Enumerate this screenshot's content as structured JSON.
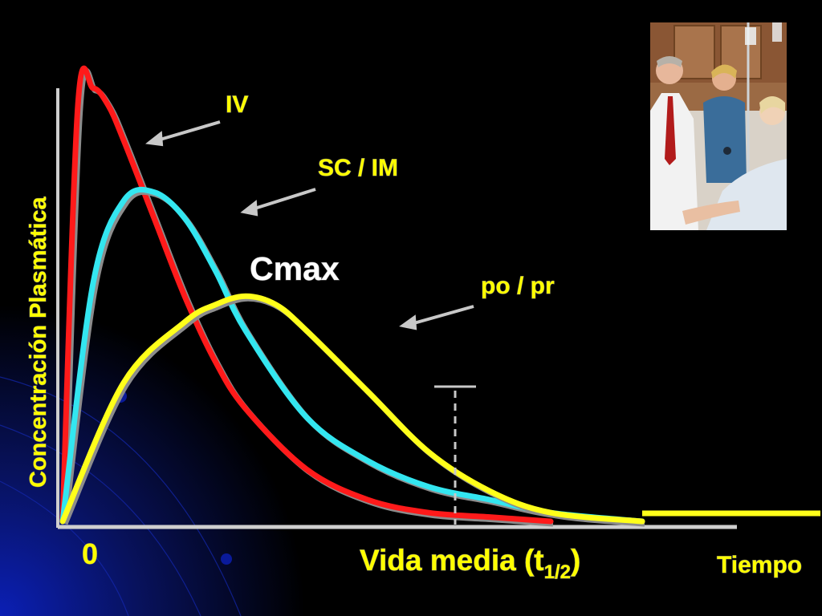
{
  "slide": {
    "background_color": "#000000",
    "decoration_color": "#0a1ea8",
    "photo": {
      "description_icon": "photo-medical-iv-drip",
      "colors": {
        "cabinet": "#9b6a44",
        "scrubs": "#3a6d9a",
        "coat": "#f2f2f2",
        "tie": "#b21b1b",
        "gown": "#dfe7ef"
      }
    }
  },
  "chart_data": {
    "type": "line",
    "ylabel": "Concentración Plasmática",
    "xlabel_parts": {
      "main": "Vida media (t",
      "sub": "1/2",
      "close": ")"
    },
    "x_end_label": "Tiempo",
    "x_origin_tick": "0",
    "grid": false,
    "legend": "inline annotations with arrows",
    "series": [
      {
        "name": "IV",
        "color": "#ff1a1a",
        "x": [
          0,
          0.5,
          1.0,
          1.5,
          2,
          3,
          4,
          5,
          6,
          8,
          10,
          12,
          14,
          16
        ],
        "y": [
          0,
          96,
          100,
          96,
          88,
          70,
          52,
          37,
          26,
          12,
          5,
          2,
          1,
          0
        ]
      },
      {
        "name": "SC / IM",
        "color": "#33e6f0",
        "x": [
          0,
          1,
          2,
          3,
          4,
          5,
          6,
          8,
          10,
          12,
          14,
          16,
          19
        ],
        "y": [
          0,
          55,
          74,
          76,
          70,
          58,
          44,
          24,
          14,
          8,
          5,
          2,
          0
        ]
      },
      {
        "name": "po / pr",
        "color": "#ffff1a",
        "x": [
          0,
          2,
          4,
          5,
          6,
          7,
          8,
          10,
          12,
          14,
          16,
          19
        ],
        "y": [
          0,
          32,
          46,
          50,
          52,
          50,
          44,
          30,
          16,
          7,
          2,
          0
        ]
      }
    ],
    "annotations": {
      "cmax_label": "Cmax",
      "half_life_x": 9.7
    }
  }
}
